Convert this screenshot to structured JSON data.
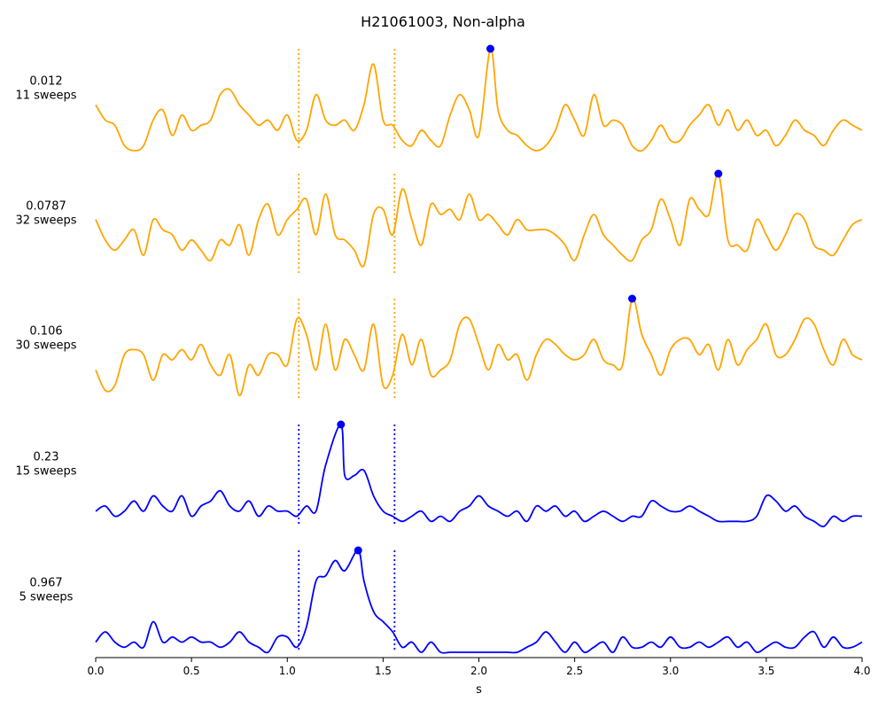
{
  "chart_data": {
    "type": "line",
    "title": "H21061003, Non-alpha",
    "xlabel": "s",
    "xlim": [
      0.0,
      4.0
    ],
    "xticks": [
      "0.0",
      "0.5",
      "1.0",
      "1.5",
      "2.0",
      "2.5",
      "3.0",
      "3.5",
      "4.0"
    ],
    "xtick_values": [
      0.0,
      0.5,
      1.0,
      1.5,
      2.0,
      2.5,
      3.0,
      3.5,
      4.0
    ],
    "window_markers_s": [
      1.06,
      1.56
    ],
    "series": [
      {
        "label_value": "0.012",
        "label_sweeps": "11 sweeps",
        "color": "#ffa500",
        "peak": {
          "x": 2.06,
          "y": 1.0
        },
        "x": [
          0.0,
          0.05,
          0.1,
          0.15,
          0.2,
          0.25,
          0.3,
          0.35,
          0.4,
          0.45,
          0.5,
          0.55,
          0.6,
          0.65,
          0.7,
          0.75,
          0.8,
          0.85,
          0.9,
          0.95,
          1.0,
          1.05,
          1.1,
          1.15,
          1.2,
          1.25,
          1.3,
          1.35,
          1.4,
          1.45,
          1.5,
          1.55,
          1.6,
          1.65,
          1.7,
          1.75,
          1.8,
          1.85,
          1.9,
          1.95,
          2.0,
          2.06,
          2.1,
          2.15,
          2.2,
          2.25,
          2.3,
          2.35,
          2.4,
          2.45,
          2.5,
          2.55,
          2.6,
          2.65,
          2.7,
          2.75,
          2.8,
          2.85,
          2.9,
          2.95,
          3.0,
          3.05,
          3.1,
          3.15,
          3.2,
          3.25,
          3.3,
          3.35,
          3.4,
          3.45,
          3.5,
          3.55,
          3.6,
          3.65,
          3.7,
          3.75,
          3.8,
          3.85,
          3.9,
          3.95,
          4.0
        ],
        "y": [
          0.45,
          0.3,
          0.25,
          0.05,
          0.0,
          0.05,
          0.3,
          0.4,
          0.15,
          0.35,
          0.2,
          0.25,
          0.3,
          0.55,
          0.6,
          0.45,
          0.35,
          0.25,
          0.3,
          0.2,
          0.35,
          0.1,
          0.2,
          0.55,
          0.3,
          0.25,
          0.3,
          0.2,
          0.45,
          0.85,
          0.3,
          0.25,
          0.1,
          0.05,
          0.2,
          0.1,
          0.05,
          0.35,
          0.55,
          0.4,
          0.15,
          1.0,
          0.4,
          0.2,
          0.15,
          0.05,
          0.0,
          0.05,
          0.2,
          0.45,
          0.3,
          0.15,
          0.55,
          0.25,
          0.3,
          0.25,
          0.05,
          0.0,
          0.1,
          0.25,
          0.1,
          0.1,
          0.25,
          0.35,
          0.45,
          0.25,
          0.4,
          0.2,
          0.3,
          0.15,
          0.2,
          0.05,
          0.15,
          0.3,
          0.2,
          0.15,
          0.05,
          0.2,
          0.3,
          0.25,
          0.2
        ]
      },
      {
        "label_value": "0.0787",
        "label_sweeps": "32 sweeps",
        "color": "#ffa500",
        "peak": {
          "x": 3.25,
          "y": 1.0
        },
        "x": [
          0.0,
          0.05,
          0.1,
          0.15,
          0.2,
          0.25,
          0.3,
          0.35,
          0.4,
          0.45,
          0.5,
          0.55,
          0.6,
          0.65,
          0.7,
          0.75,
          0.8,
          0.85,
          0.9,
          0.95,
          1.0,
          1.05,
          1.1,
          1.15,
          1.2,
          1.25,
          1.3,
          1.35,
          1.4,
          1.45,
          1.5,
          1.55,
          1.6,
          1.65,
          1.7,
          1.75,
          1.8,
          1.85,
          1.9,
          1.95,
          2.0,
          2.05,
          2.1,
          2.15,
          2.2,
          2.25,
          2.3,
          2.35,
          2.4,
          2.45,
          2.5,
          2.55,
          2.6,
          2.65,
          2.7,
          2.75,
          2.8,
          2.85,
          2.9,
          2.95,
          3.0,
          3.05,
          3.1,
          3.15,
          3.2,
          3.25,
          3.3,
          3.35,
          3.4,
          3.45,
          3.5,
          3.55,
          3.6,
          3.65,
          3.7,
          3.75,
          3.8,
          3.85,
          3.9,
          3.95,
          4.0
        ],
        "y": [
          0.55,
          0.35,
          0.25,
          0.35,
          0.45,
          0.2,
          0.55,
          0.45,
          0.4,
          0.25,
          0.35,
          0.25,
          0.15,
          0.35,
          0.3,
          0.5,
          0.2,
          0.55,
          0.7,
          0.4,
          0.55,
          0.65,
          0.75,
          0.4,
          0.8,
          0.4,
          0.35,
          0.25,
          0.1,
          0.6,
          0.65,
          0.4,
          0.85,
          0.55,
          0.3,
          0.7,
          0.6,
          0.65,
          0.55,
          0.8,
          0.55,
          0.6,
          0.5,
          0.4,
          0.55,
          0.45,
          0.45,
          0.45,
          0.4,
          0.3,
          0.15,
          0.4,
          0.6,
          0.4,
          0.3,
          0.2,
          0.15,
          0.35,
          0.45,
          0.75,
          0.55,
          0.3,
          0.75,
          0.65,
          0.6,
          1.0,
          0.35,
          0.3,
          0.25,
          0.55,
          0.4,
          0.25,
          0.4,
          0.6,
          0.55,
          0.3,
          0.25,
          0.2,
          0.35,
          0.5,
          0.55
        ]
      },
      {
        "label_value": "0.106",
        "label_sweeps": "30 sweeps",
        "color": "#ffa500",
        "peak": {
          "x": 2.8,
          "y": 1.0
        },
        "x": [
          0.0,
          0.05,
          0.1,
          0.15,
          0.2,
          0.25,
          0.3,
          0.35,
          0.4,
          0.45,
          0.5,
          0.55,
          0.6,
          0.65,
          0.7,
          0.75,
          0.8,
          0.85,
          0.9,
          0.95,
          1.0,
          1.05,
          1.1,
          1.15,
          1.2,
          1.25,
          1.3,
          1.35,
          1.4,
          1.45,
          1.5,
          1.55,
          1.6,
          1.65,
          1.7,
          1.75,
          1.8,
          1.85,
          1.9,
          1.95,
          2.0,
          2.05,
          2.1,
          2.15,
          2.2,
          2.25,
          2.3,
          2.35,
          2.4,
          2.45,
          2.5,
          2.55,
          2.6,
          2.65,
          2.7,
          2.75,
          2.8,
          2.85,
          2.9,
          2.95,
          3.0,
          3.05,
          3.1,
          3.15,
          3.2,
          3.25,
          3.3,
          3.35,
          3.4,
          3.45,
          3.5,
          3.55,
          3.6,
          3.65,
          3.7,
          3.75,
          3.8,
          3.85,
          3.9,
          3.95,
          4.0
        ],
        "y": [
          0.3,
          0.1,
          0.15,
          0.45,
          0.5,
          0.45,
          0.2,
          0.45,
          0.4,
          0.5,
          0.4,
          0.55,
          0.35,
          0.25,
          0.45,
          0.05,
          0.35,
          0.25,
          0.45,
          0.45,
          0.35,
          0.8,
          0.65,
          0.3,
          0.75,
          0.3,
          0.6,
          0.45,
          0.3,
          0.75,
          0.15,
          0.25,
          0.65,
          0.35,
          0.6,
          0.25,
          0.3,
          0.4,
          0.75,
          0.8,
          0.55,
          0.3,
          0.55,
          0.4,
          0.45,
          0.2,
          0.45,
          0.6,
          0.55,
          0.45,
          0.4,
          0.45,
          0.6,
          0.4,
          0.35,
          0.35,
          1.0,
          0.65,
          0.45,
          0.25,
          0.5,
          0.6,
          0.6,
          0.45,
          0.55,
          0.3,
          0.6,
          0.35,
          0.5,
          0.6,
          0.75,
          0.45,
          0.45,
          0.6,
          0.8,
          0.75,
          0.5,
          0.35,
          0.6,
          0.45,
          0.4
        ]
      },
      {
        "label_value": "0.23",
        "label_sweeps": "15 sweeps",
        "color": "#0000ff",
        "peak": {
          "x": 1.28,
          "y": 1.0
        },
        "x": [
          0.0,
          0.05,
          0.1,
          0.15,
          0.2,
          0.25,
          0.3,
          0.35,
          0.4,
          0.45,
          0.5,
          0.55,
          0.6,
          0.65,
          0.7,
          0.75,
          0.8,
          0.85,
          0.9,
          0.95,
          1.0,
          1.05,
          1.1,
          1.15,
          1.2,
          1.28,
          1.3,
          1.35,
          1.4,
          1.45,
          1.5,
          1.55,
          1.6,
          1.65,
          1.7,
          1.75,
          1.8,
          1.85,
          1.9,
          1.95,
          2.0,
          2.05,
          2.1,
          2.15,
          2.2,
          2.25,
          2.3,
          2.35,
          2.4,
          2.45,
          2.5,
          2.55,
          2.6,
          2.65,
          2.7,
          2.75,
          2.8,
          2.85,
          2.9,
          2.95,
          3.0,
          3.05,
          3.1,
          3.15,
          3.2,
          3.25,
          3.3,
          3.35,
          3.4,
          3.45,
          3.5,
          3.55,
          3.6,
          3.65,
          3.7,
          3.75,
          3.8,
          3.85,
          3.9,
          3.95,
          4.0
        ],
        "y": [
          0.15,
          0.2,
          0.1,
          0.15,
          0.25,
          0.15,
          0.3,
          0.2,
          0.15,
          0.3,
          0.1,
          0.2,
          0.25,
          0.35,
          0.2,
          0.15,
          0.25,
          0.1,
          0.2,
          0.15,
          0.15,
          0.1,
          0.2,
          0.15,
          0.6,
          1.0,
          0.5,
          0.5,
          0.55,
          0.3,
          0.15,
          0.1,
          0.05,
          0.1,
          0.15,
          0.05,
          0.1,
          0.05,
          0.15,
          0.2,
          0.3,
          0.2,
          0.15,
          0.1,
          0.15,
          0.05,
          0.2,
          0.15,
          0.2,
          0.1,
          0.15,
          0.05,
          0.1,
          0.15,
          0.1,
          0.05,
          0.1,
          0.1,
          0.25,
          0.2,
          0.15,
          0.15,
          0.2,
          0.15,
          0.1,
          0.05,
          0.05,
          0.05,
          0.05,
          0.1,
          0.3,
          0.25,
          0.15,
          0.2,
          0.1,
          0.05,
          0.0,
          0.1,
          0.05,
          0.1,
          0.1
        ]
      },
      {
        "label_value": "0.967",
        "label_sweeps": "5 sweeps",
        "color": "#0000ff",
        "peak": {
          "x": 1.37,
          "y": 1.0
        },
        "x": [
          0.0,
          0.05,
          0.1,
          0.15,
          0.2,
          0.25,
          0.3,
          0.35,
          0.4,
          0.45,
          0.5,
          0.55,
          0.6,
          0.65,
          0.7,
          0.75,
          0.8,
          0.85,
          0.9,
          0.95,
          1.0,
          1.05,
          1.1,
          1.15,
          1.2,
          1.25,
          1.3,
          1.37,
          1.4,
          1.45,
          1.5,
          1.55,
          1.6,
          1.65,
          1.7,
          1.75,
          1.8,
          1.85,
          1.9,
          1.95,
          2.0,
          2.05,
          2.1,
          2.15,
          2.2,
          2.25,
          2.3,
          2.35,
          2.4,
          2.45,
          2.5,
          2.55,
          2.6,
          2.65,
          2.7,
          2.75,
          2.8,
          2.85,
          2.9,
          2.95,
          3.0,
          3.05,
          3.1,
          3.15,
          3.2,
          3.25,
          3.3,
          3.35,
          3.4,
          3.45,
          3.5,
          3.55,
          3.6,
          3.65,
          3.7,
          3.75,
          3.8,
          3.85,
          3.9,
          3.95,
          4.0
        ],
        "y": [
          0.1,
          0.2,
          0.1,
          0.05,
          0.1,
          0.05,
          0.3,
          0.1,
          0.15,
          0.1,
          0.15,
          0.1,
          0.1,
          0.05,
          0.1,
          0.2,
          0.1,
          0.05,
          0.0,
          0.15,
          0.15,
          0.05,
          0.25,
          0.7,
          0.75,
          0.9,
          0.8,
          1.0,
          0.7,
          0.4,
          0.3,
          0.2,
          0.05,
          0.1,
          0.0,
          0.1,
          0.0,
          0.0,
          0.0,
          0.0,
          0.0,
          0.0,
          0.0,
          0.0,
          0.0,
          0.05,
          0.1,
          0.2,
          0.1,
          0.0,
          0.1,
          0.0,
          0.05,
          0.1,
          0.0,
          0.15,
          0.05,
          0.05,
          0.1,
          0.05,
          0.15,
          0.05,
          0.05,
          0.1,
          0.05,
          0.1,
          0.15,
          0.05,
          0.1,
          0.0,
          0.05,
          0.1,
          0.05,
          0.05,
          0.15,
          0.2,
          0.05,
          0.15,
          0.05,
          0.05,
          0.1
        ]
      }
    ]
  }
}
